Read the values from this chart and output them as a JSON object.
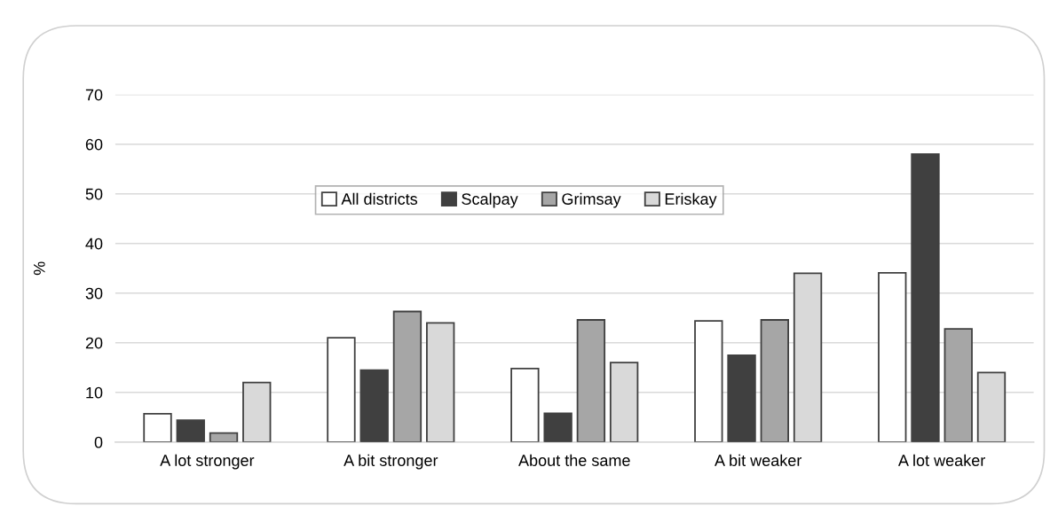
{
  "chart_data": {
    "type": "bar",
    "ylabel": "%",
    "categories": [
      "A lot stronger",
      "A bit stronger",
      "About the same",
      "A bit weaker",
      "A lot weaker"
    ],
    "series": [
      {
        "name": "All districts",
        "color": "#ffffff",
        "values": [
          5.7,
          21.0,
          14.8,
          24.4,
          34.1
        ]
      },
      {
        "name": "Scalpay",
        "color": "#404040",
        "values": [
          4.4,
          14.5,
          5.8,
          17.5,
          58.0
        ]
      },
      {
        "name": "Grimsay",
        "color": "#a6a6a6",
        "values": [
          1.8,
          26.3,
          24.6,
          24.6,
          22.8
        ]
      },
      {
        "name": "Eriskay",
        "color": "#d9d9d9",
        "values": [
          12.0,
          24.0,
          16.0,
          34.0,
          14.0
        ]
      }
    ],
    "ylim": [
      0,
      70
    ],
    "yticks": [
      0,
      10,
      20,
      30,
      40,
      50,
      60,
      70
    ],
    "grid": "y",
    "legend": "top"
  }
}
